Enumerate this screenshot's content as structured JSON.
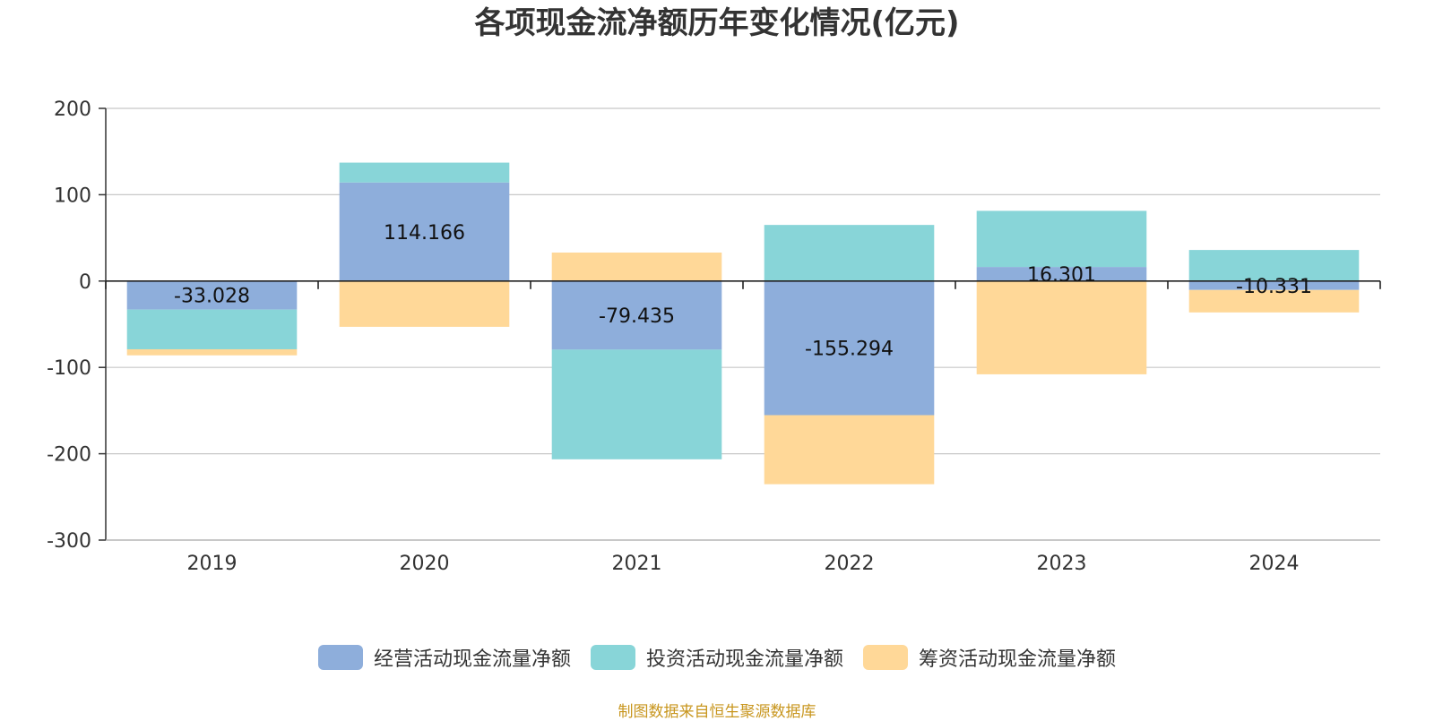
{
  "chart_data": {
    "type": "bar",
    "stacked": true,
    "title": "各项现金流净额历年变化情况(亿元)",
    "xlabel": "",
    "ylabel": "",
    "categories": [
      "2019",
      "2020",
      "2021",
      "2022",
      "2023",
      "2024"
    ],
    "ylim": [
      -300,
      200
    ],
    "yticks": [
      200,
      100,
      0,
      -100,
      -200,
      -300
    ],
    "grid": true,
    "legend_position": "bottom",
    "series": [
      {
        "name": "经营活动现金流量净额",
        "color": "#8eaedb",
        "values": [
          -33.028,
          114.166,
          -79.435,
          -155.294,
          16.301,
          -10.331
        ],
        "labels": [
          "-33.028",
          "114.166",
          "-79.435",
          "-155.294",
          "16.301",
          "-10.331"
        ]
      },
      {
        "name": "投资活动现金流量净额",
        "color": "#88d5d8",
        "values": [
          -46,
          23,
          -127,
          65,
          65,
          36
        ]
      },
      {
        "name": "筹资活动现金流量净额",
        "color": "#ffd898",
        "values": [
          -7,
          -53,
          33,
          -80,
          -108,
          -26
        ]
      }
    ]
  },
  "footer": {
    "source": "制图数据来自恒生聚源数据库"
  }
}
